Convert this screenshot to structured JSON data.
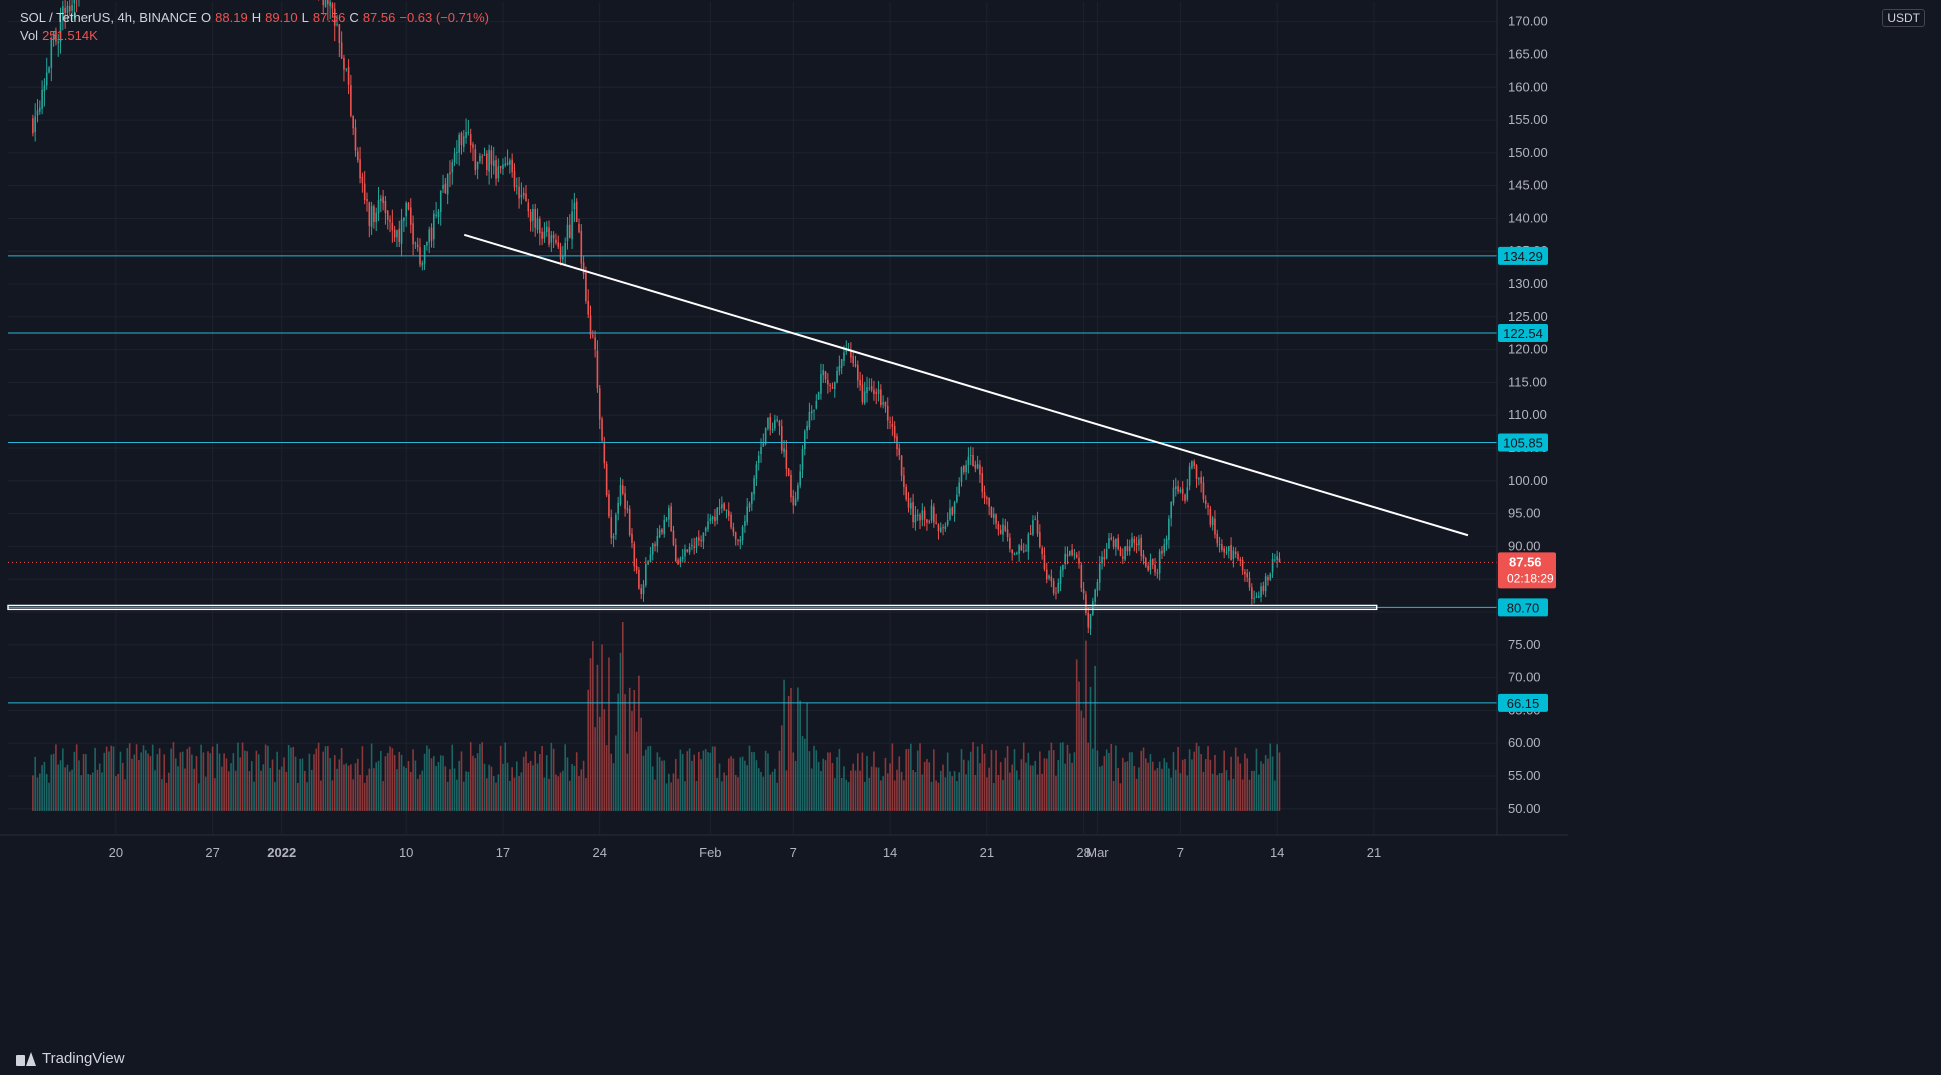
{
  "header": {
    "symbol": "SOL / TetherUS, 4h, BINANCE",
    "o_label": "O",
    "o_value": "88.19",
    "h_label": "H",
    "h_value": "89.10",
    "l_label": "L",
    "l_value": "87.56",
    "c_label": "C",
    "c_value": "87.56",
    "change": "−0.63 (−0.71%)",
    "vol_label": "Vol",
    "vol_value": "251.514K"
  },
  "currency_badge": "USDT",
  "footer": {
    "brand": "TradingView"
  },
  "colors": {
    "background": "#131722",
    "grid": "#1e222d",
    "up": "#26a69a",
    "down": "#ef5350",
    "level_line": "#29b6d6",
    "trendline": "#ffffff",
    "price_tag": "#ef5350"
  },
  "chart_data": {
    "type": "candlestick",
    "symbol": "SOL/USDT",
    "timeframe": "4h",
    "y_axis": {
      "range": [
        46,
        173
      ],
      "ticks": [
        50,
        55,
        60,
        65,
        70,
        75,
        80,
        85,
        90,
        95,
        100,
        105,
        110,
        115,
        120,
        125,
        130,
        135,
        140,
        145,
        150,
        155,
        160,
        165,
        170
      ],
      "tick_labels": [
        "50.00",
        "55.00",
        "60.00",
        "65.00",
        "70.00",
        "75.00",
        "80.00",
        "85.00",
        "90.00",
        "95.00",
        "100.00",
        "105.00",
        "110.00",
        "115.00",
        "120.00",
        "125.00",
        "130.00",
        "135.00",
        "140.00",
        "145.00",
        "150.00",
        "155.00",
        "160.00",
        "165.00",
        "170.00"
      ]
    },
    "x_axis": {
      "ticks": [
        {
          "label": "20",
          "day": 20,
          "bold": false
        },
        {
          "label": "27",
          "day": 27,
          "bold": false
        },
        {
          "label": "2022",
          "day": 32,
          "bold": true
        },
        {
          "label": "10",
          "day": 41,
          "bold": false
        },
        {
          "label": "17",
          "day": 48,
          "bold": false
        },
        {
          "label": "24",
          "day": 55,
          "bold": false
        },
        {
          "label": "Feb",
          "day": 63,
          "bold": false
        },
        {
          "label": "7",
          "day": 69,
          "bold": false
        },
        {
          "label": "14",
          "day": 76,
          "bold": false
        },
        {
          "label": "21",
          "day": 83,
          "bold": false
        },
        {
          "label": "28",
          "day": 90,
          "bold": false
        },
        {
          "label": "Mar",
          "day": 91,
          "bold": false
        },
        {
          "label": "7",
          "day": 97,
          "bold": false
        },
        {
          "label": "14",
          "day": 104,
          "bold": false
        },
        {
          "label": "21",
          "day": 111,
          "bold": false
        }
      ],
      "visible_tick_labels": [
        "20",
        "27",
        "2022",
        "10",
        "17",
        "24",
        "Feb",
        "7",
        "14",
        "21",
        "Mar",
        "7",
        "14",
        "21"
      ]
    },
    "price_path_keypoints": [
      {
        "day": 14.0,
        "price": 155
      },
      {
        "day": 15.5,
        "price": 167
      },
      {
        "day": 17.0,
        "price": 175
      },
      {
        "day": 20.0,
        "price": 180
      },
      {
        "day": 28.0,
        "price": 178
      },
      {
        "day": 34.0,
        "price": 178
      },
      {
        "day": 36.0,
        "price": 171
      },
      {
        "day": 36.8,
        "price": 160
      },
      {
        "day": 37.6,
        "price": 148
      },
      {
        "day": 38.3,
        "price": 140
      },
      {
        "day": 39.2,
        "price": 143
      },
      {
        "day": 40.4,
        "price": 137
      },
      {
        "day": 41.0,
        "price": 141
      },
      {
        "day": 42.0,
        "price": 134
      },
      {
        "day": 43.0,
        "price": 139
      },
      {
        "day": 44.0,
        "price": 147
      },
      {
        "day": 44.8,
        "price": 151
      },
      {
        "day": 45.3,
        "price": 155
      },
      {
        "day": 46.0,
        "price": 147
      },
      {
        "day": 47.0,
        "price": 149
      },
      {
        "day": 47.5,
        "price": 146
      },
      {
        "day": 48.5,
        "price": 150
      },
      {
        "day": 49.0,
        "price": 144
      },
      {
        "day": 50.0,
        "price": 141
      },
      {
        "day": 51.0,
        "price": 138
      },
      {
        "day": 52.0,
        "price": 135
      },
      {
        "day": 52.5,
        "price": 136
      },
      {
        "day": 53.2,
        "price": 142
      },
      {
        "day": 53.8,
        "price": 131
      },
      {
        "day": 54.2,
        "price": 126
      },
      {
        "day": 54.7,
        "price": 118
      },
      {
        "day": 55.1,
        "price": 108
      },
      {
        "day": 55.5,
        "price": 97
      },
      {
        "day": 55.9,
        "price": 90
      },
      {
        "day": 56.4,
        "price": 99
      },
      {
        "day": 57.0,
        "price": 95
      },
      {
        "day": 57.5,
        "price": 88
      },
      {
        "day": 58.0,
        "price": 83
      },
      {
        "day": 58.5,
        "price": 88
      },
      {
        "day": 59.2,
        "price": 92
      },
      {
        "day": 60.0,
        "price": 95
      },
      {
        "day": 60.6,
        "price": 87
      },
      {
        "day": 61.2,
        "price": 89
      },
      {
        "day": 62.0,
        "price": 91
      },
      {
        "day": 63.0,
        "price": 94
      },
      {
        "day": 64.0,
        "price": 96
      },
      {
        "day": 65.0,
        "price": 90
      },
      {
        "day": 66.0,
        "price": 98
      },
      {
        "day": 67.0,
        "price": 108
      },
      {
        "day": 67.8,
        "price": 109
      },
      {
        "day": 68.5,
        "price": 103
      },
      {
        "day": 69.0,
        "price": 96
      },
      {
        "day": 69.6,
        "price": 104
      },
      {
        "day": 70.3,
        "price": 111
      },
      {
        "day": 71.2,
        "price": 117
      },
      {
        "day": 72.0,
        "price": 114
      },
      {
        "day": 72.6,
        "price": 120
      },
      {
        "day": 73.2,
        "price": 118
      },
      {
        "day": 74.0,
        "price": 113
      },
      {
        "day": 75.0,
        "price": 114
      },
      {
        "day": 75.8,
        "price": 110
      },
      {
        "day": 76.6,
        "price": 104
      },
      {
        "day": 77.3,
        "price": 96
      },
      {
        "day": 78.0,
        "price": 94
      },
      {
        "day": 79.0,
        "price": 95
      },
      {
        "day": 80.0,
        "price": 92
      },
      {
        "day": 81.0,
        "price": 100
      },
      {
        "day": 81.8,
        "price": 104
      },
      {
        "day": 82.6,
        "price": 100
      },
      {
        "day": 83.4,
        "price": 95
      },
      {
        "day": 84.2,
        "price": 92
      },
      {
        "day": 85.0,
        "price": 89
      },
      {
        "day": 85.8,
        "price": 90
      },
      {
        "day": 86.5,
        "price": 94
      },
      {
        "day": 87.2,
        "price": 87
      },
      {
        "day": 87.9,
        "price": 82
      },
      {
        "day": 88.6,
        "price": 88
      },
      {
        "day": 89.3,
        "price": 90
      },
      {
        "day": 89.8,
        "price": 85
      },
      {
        "day": 90.3,
        "price": 78
      },
      {
        "day": 90.8,
        "price": 84
      },
      {
        "day": 91.3,
        "price": 88
      },
      {
        "day": 92.0,
        "price": 91
      },
      {
        "day": 92.8,
        "price": 89
      },
      {
        "day": 93.6,
        "price": 92
      },
      {
        "day": 94.4,
        "price": 88
      },
      {
        "day": 95.2,
        "price": 86
      },
      {
        "day": 96.0,
        "price": 92
      },
      {
        "day": 96.6,
        "price": 99
      },
      {
        "day": 97.2,
        "price": 97
      },
      {
        "day": 97.8,
        "price": 102
      },
      {
        "day": 98.4,
        "price": 100
      },
      {
        "day": 99.0,
        "price": 95
      },
      {
        "day": 99.6,
        "price": 92
      },
      {
        "day": 100.2,
        "price": 89
      },
      {
        "day": 101.0,
        "price": 89
      },
      {
        "day": 101.6,
        "price": 86
      },
      {
        "day": 102.2,
        "price": 82
      },
      {
        "day": 102.8,
        "price": 83
      },
      {
        "day": 103.3,
        "price": 85
      },
      {
        "day": 103.8,
        "price": 89
      },
      {
        "day": 104.2,
        "price": 88
      }
    ],
    "horizontal_levels": [
      {
        "value": 134.29,
        "label": "134.29"
      },
      {
        "value": 122.54,
        "label": "122.54"
      },
      {
        "value": 105.85,
        "label": "105.85"
      },
      {
        "value": 80.7,
        "label": "80.70"
      },
      {
        "value": 66.15,
        "label": "66.15"
      }
    ],
    "support_zone": {
      "low": 80.4,
      "high": 81.0
    },
    "trendline": {
      "start": {
        "day": 45.2,
        "price": 137.5
      },
      "end": {
        "day": 117.8,
        "price": 91.7
      }
    },
    "last_price": {
      "value": 87.56,
      "label": "87.56",
      "countdown": "02:18:29"
    },
    "volume": {
      "max_reference": 1.0
    }
  }
}
